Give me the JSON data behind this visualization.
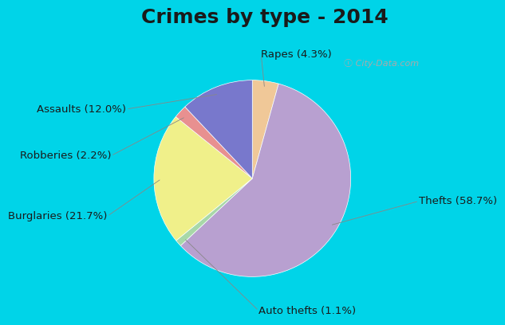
{
  "title": "Crimes by type - 2014",
  "pie_values": [
    4.3,
    58.7,
    1.1,
    21.7,
    2.2,
    12.0
  ],
  "pie_colors": [
    "#f0c898",
    "#b8a0d0",
    "#a8d8a8",
    "#f0f08a",
    "#e89090",
    "#7878cc"
  ],
  "pie_label_texts": [
    "Rapes (4.3%)",
    "Thefts (58.7%)",
    "Auto thefts (1.1%)",
    "Burglaries (21.7%)",
    "Robberies (2.2%)",
    "Assaults (12.0%)"
  ],
  "bg_color_top": "#00d4e8",
  "bg_color_chart": "#d8ede0",
  "title_fontsize": 18,
  "label_fontsize": 9.5
}
